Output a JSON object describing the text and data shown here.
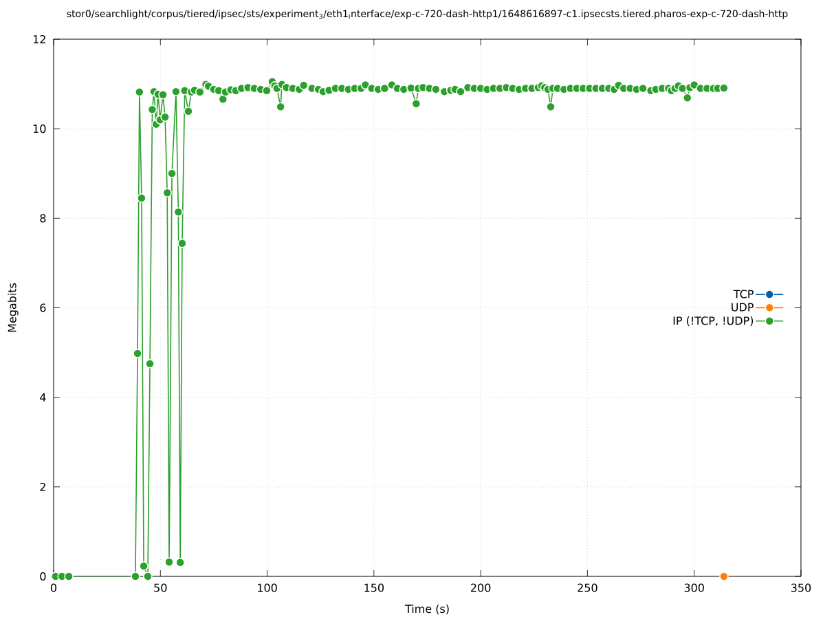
{
  "chart_data": {
    "type": "line",
    "title": "stor0/searchlight/corpus/tiered/ipsec/sts/experiment$_{3}$/eth1$_{i}$nterface/exp-c-720-dash-http1/1648616897-c1.ipsecsts.tiered.pharos-exp-c-720-dash-http",
    "xlabel": "Time (s)",
    "ylabel": "Megabits",
    "xlim": [
      0,
      350
    ],
    "ylim": [
      0,
      12
    ],
    "xticks": [
      0,
      50,
      100,
      150,
      200,
      250,
      300,
      350
    ],
    "yticks": [
      0,
      2,
      4,
      6,
      8,
      10,
      12
    ],
    "grid": true,
    "legend": "right",
    "marker": "circle",
    "line_style": "solid",
    "series": [
      {
        "name": "TCP",
        "color": "#0060ad"
      },
      {
        "name": "UDP",
        "color": "#ff7f0e",
        "x": [
          313.9
        ],
        "values": [
          0
        ]
      },
      {
        "name": "IP (!TCP, !UDP)",
        "color": "#2ca02c",
        "x": [
          0.9,
          3.9,
          7.1,
          38.3,
          39.3,
          40.2,
          41.2,
          42.2,
          44.1,
          45.1,
          46.2,
          47.0,
          48.0,
          48.9,
          49.9,
          51.2,
          52.2,
          53.2,
          54.1,
          55.4,
          57.3,
          58.4,
          59.3,
          60.2,
          61.4,
          63.1,
          64.5,
          66,
          68.5,
          71.3,
          72.5,
          75,
          77.3,
          79.3,
          80.5,
          83,
          85.3,
          88,
          91,
          94,
          97,
          99.8,
          102.4,
          103.6,
          104.6,
          106.3,
          106.9,
          109,
          112,
          115,
          117.1,
          121,
          124,
          126.2,
          129,
          132,
          135,
          138,
          141,
          144,
          146,
          149,
          152,
          155,
          158.4,
          161,
          164,
          167.4,
          169.8,
          170.8,
          173,
          176,
          179,
          183,
          186,
          188,
          190.6,
          194,
          197,
          200,
          203,
          206,
          209,
          212,
          215,
          218,
          221,
          224,
          227,
          228.6,
          230,
          231.5,
          232.8,
          233.8,
          236,
          239,
          242,
          245,
          248,
          251,
          254,
          257,
          260,
          262.5,
          264.6,
          267,
          270,
          273,
          276,
          279.7,
          282,
          285,
          288,
          289.3,
          291,
          292.6,
          294.5,
          296.8,
          298,
          300,
          303,
          306,
          309,
          311,
          313.9
        ],
        "values": [
          0,
          0,
          0,
          0,
          4.98,
          10.82,
          8.45,
          0.23,
          0,
          4.75,
          10.43,
          10.83,
          10.1,
          10.77,
          10.2,
          10.76,
          10.26,
          8.57,
          0.32,
          9.0,
          10.83,
          8.14,
          0.31,
          7.44,
          10.85,
          10.39,
          10.82,
          10.86,
          10.82,
          10.99,
          10.95,
          10.88,
          10.85,
          10.66,
          10.82,
          10.87,
          10.85,
          10.9,
          10.92,
          10.9,
          10.88,
          10.85,
          11.05,
          10.96,
          10.9,
          10.49,
          10.99,
          10.92,
          10.9,
          10.88,
          10.97,
          10.9,
          10.88,
          10.83,
          10.86,
          10.9,
          10.9,
          10.88,
          10.9,
          10.9,
          10.98,
          10.9,
          10.88,
          10.9,
          10.98,
          10.9,
          10.88,
          10.91,
          10.56,
          10.9,
          10.92,
          10.9,
          10.88,
          10.83,
          10.86,
          10.88,
          10.83,
          10.92,
          10.9,
          10.9,
          10.88,
          10.9,
          10.9,
          10.92,
          10.9,
          10.88,
          10.9,
          10.9,
          10.92,
          10.96,
          10.92,
          10.88,
          10.49,
          10.9,
          10.9,
          10.88,
          10.9,
          10.9,
          10.9,
          10.9,
          10.9,
          10.9,
          10.9,
          10.88,
          10.97,
          10.9,
          10.9,
          10.88,
          10.9,
          10.85,
          10.88,
          10.9,
          10.9,
          10.85,
          10.9,
          10.96,
          10.9,
          10.69,
          10.92,
          10.98,
          10.9,
          10.9,
          10.9,
          10.9,
          10.91
        ]
      }
    ]
  }
}
